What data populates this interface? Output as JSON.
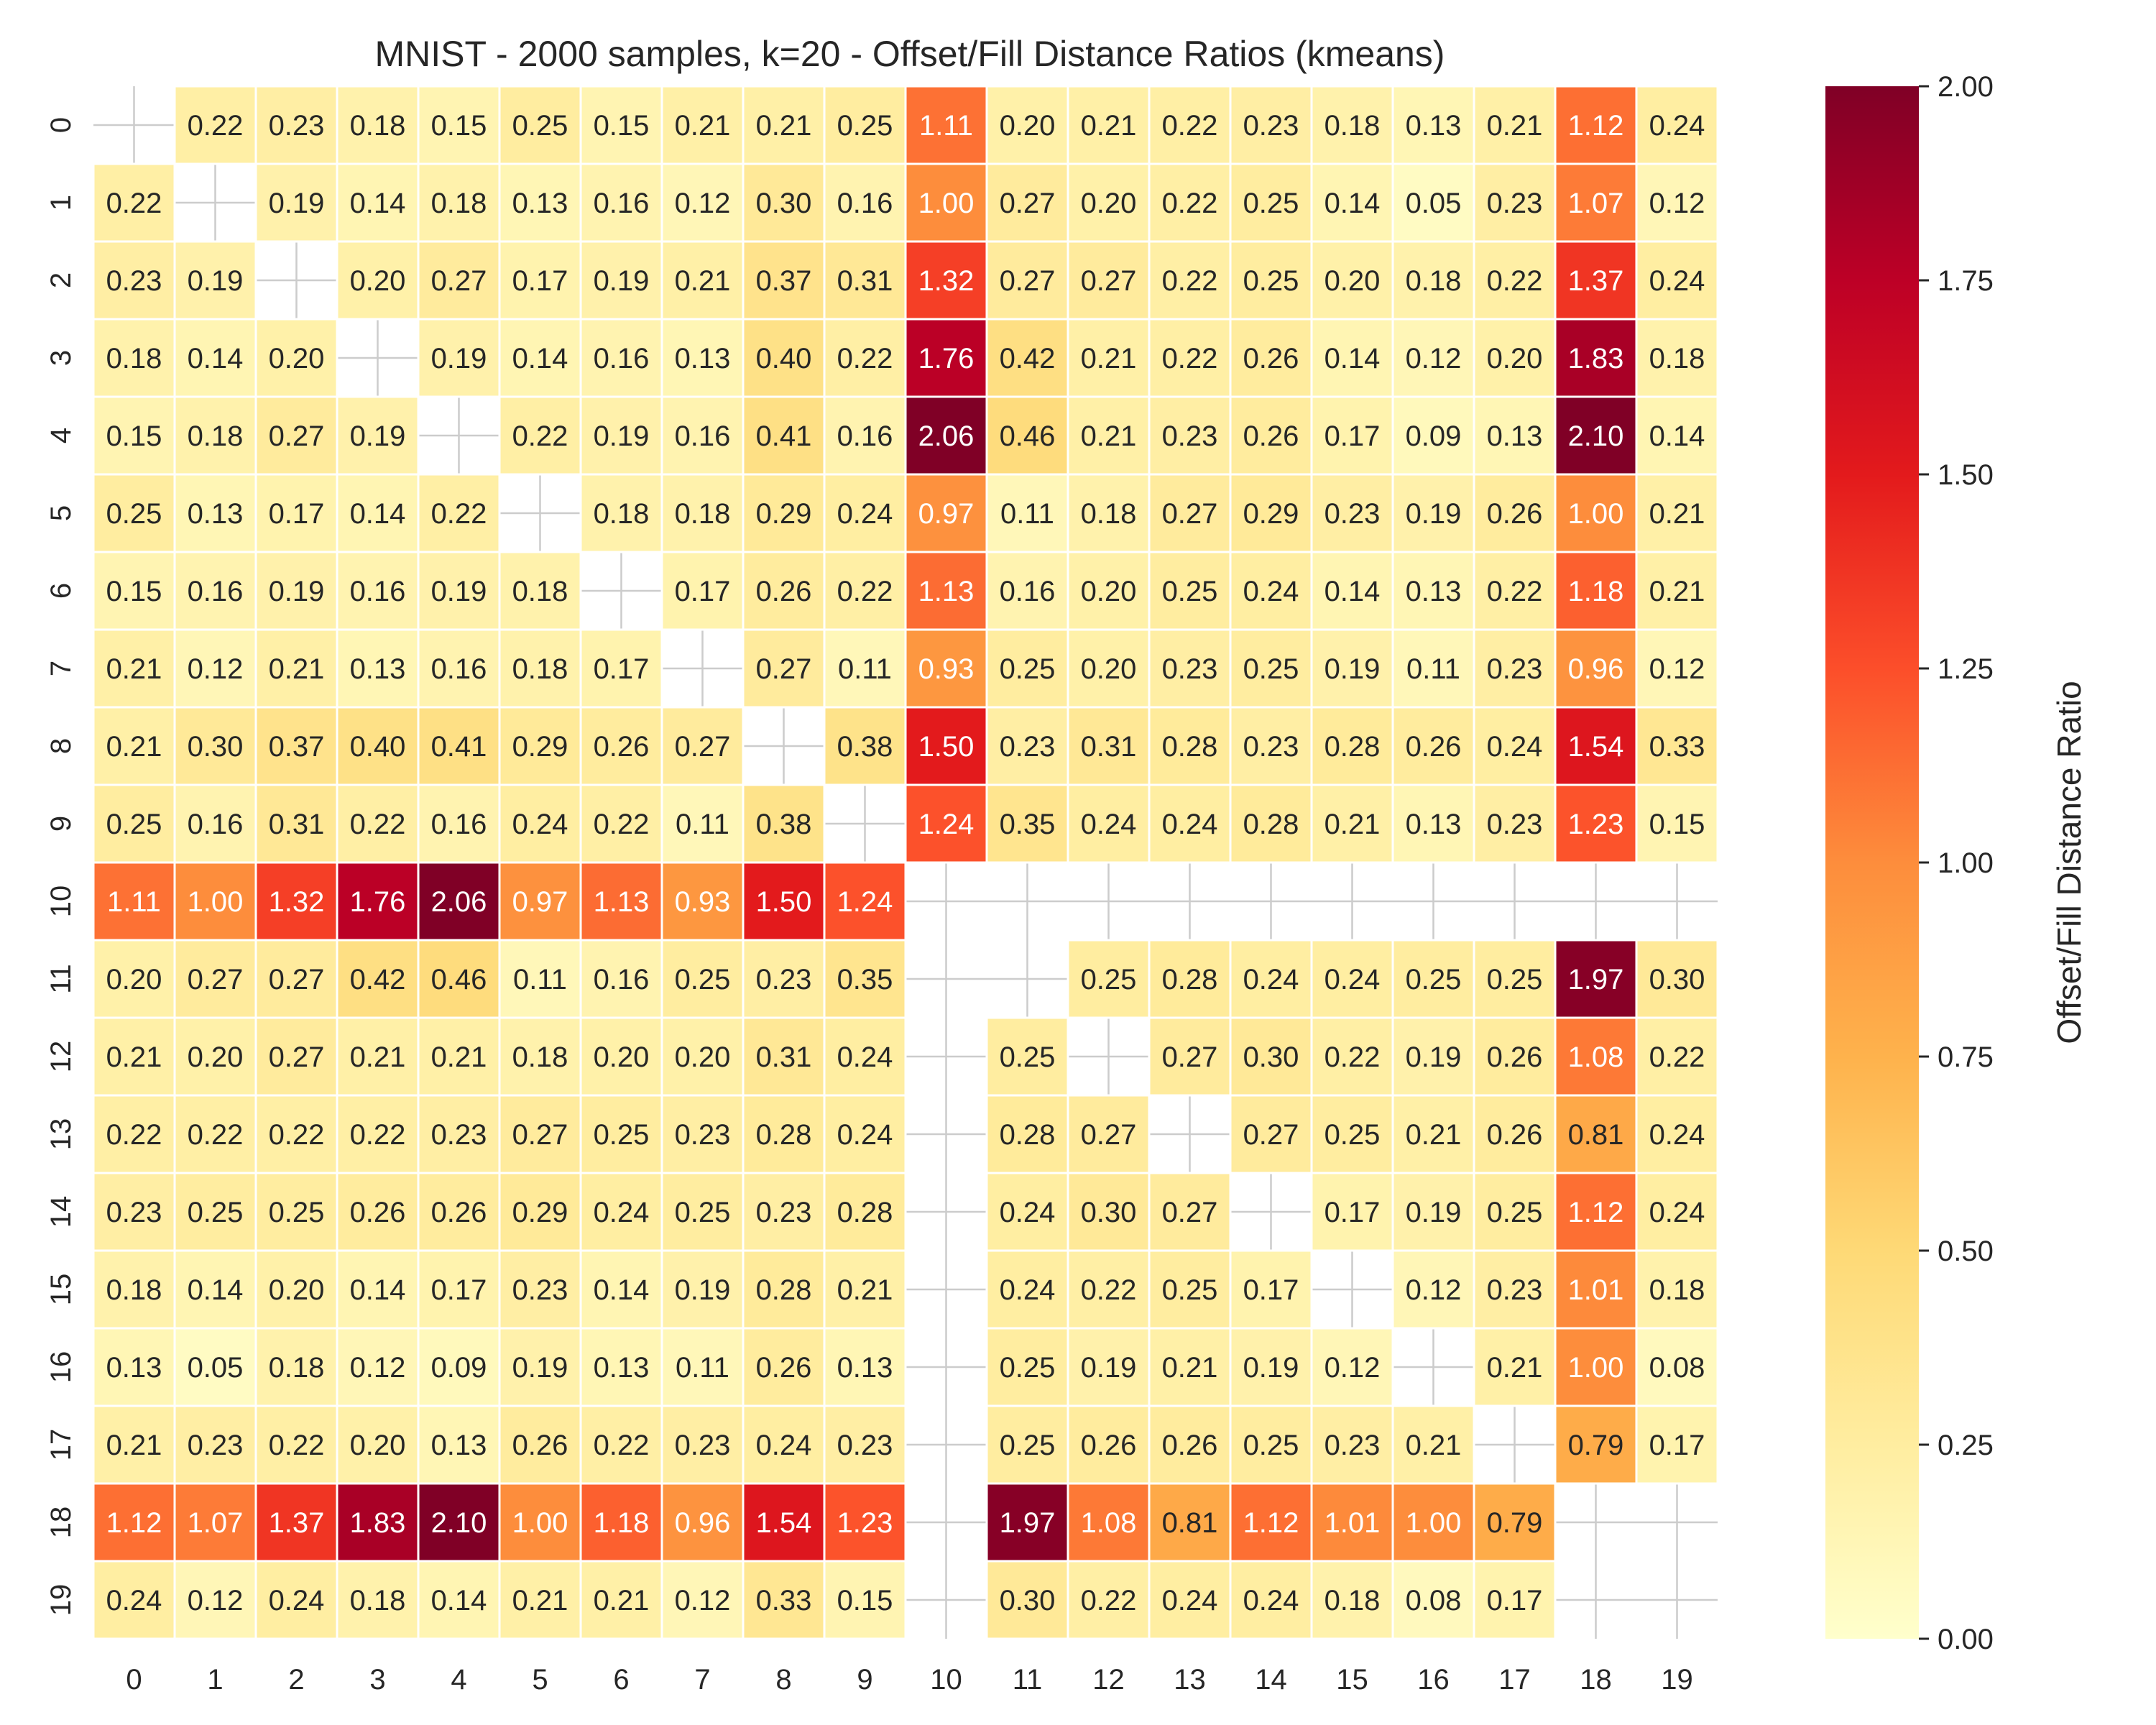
{
  "chart_data": {
    "type": "heatmap",
    "title": "MNIST - 2000 samples, k=20 - Offset/Fill Distance Ratios (kmeans)",
    "x_categories": [
      "0",
      "1",
      "2",
      "3",
      "4",
      "5",
      "6",
      "7",
      "8",
      "9",
      "10",
      "11",
      "12",
      "13",
      "14",
      "15",
      "16",
      "17",
      "18",
      "19"
    ],
    "y_categories": [
      "0",
      "1",
      "2",
      "3",
      "4",
      "5",
      "6",
      "7",
      "8",
      "9",
      "10",
      "11",
      "12",
      "13",
      "14",
      "15",
      "16",
      "17",
      "18",
      "19"
    ],
    "values": [
      [
        null,
        0.22,
        0.23,
        0.18,
        0.15,
        0.25,
        0.15,
        0.21,
        0.21,
        0.25,
        1.11,
        0.2,
        0.21,
        0.22,
        0.23,
        0.18,
        0.13,
        0.21,
        1.12,
        0.24
      ],
      [
        0.22,
        null,
        0.19,
        0.14,
        0.18,
        0.13,
        0.16,
        0.12,
        0.3,
        0.16,
        1.0,
        0.27,
        0.2,
        0.22,
        0.25,
        0.14,
        0.05,
        0.23,
        1.07,
        0.12
      ],
      [
        0.23,
        0.19,
        null,
        0.2,
        0.27,
        0.17,
        0.19,
        0.21,
        0.37,
        0.31,
        1.32,
        0.27,
        0.27,
        0.22,
        0.25,
        0.2,
        0.18,
        0.22,
        1.37,
        0.24
      ],
      [
        0.18,
        0.14,
        0.2,
        null,
        0.19,
        0.14,
        0.16,
        0.13,
        0.4,
        0.22,
        1.76,
        0.42,
        0.21,
        0.22,
        0.26,
        0.14,
        0.12,
        0.2,
        1.83,
        0.18
      ],
      [
        0.15,
        0.18,
        0.27,
        0.19,
        null,
        0.22,
        0.19,
        0.16,
        0.41,
        0.16,
        2.06,
        0.46,
        0.21,
        0.23,
        0.26,
        0.17,
        0.09,
        0.13,
        2.1,
        0.14
      ],
      [
        0.25,
        0.13,
        0.17,
        0.14,
        0.22,
        null,
        0.18,
        0.18,
        0.29,
        0.24,
        0.97,
        0.11,
        0.18,
        0.27,
        0.29,
        0.23,
        0.19,
        0.26,
        1.0,
        0.21
      ],
      [
        0.15,
        0.16,
        0.19,
        0.16,
        0.19,
        0.18,
        null,
        0.17,
        0.26,
        0.22,
        1.13,
        0.16,
        0.2,
        0.25,
        0.24,
        0.14,
        0.13,
        0.22,
        1.18,
        0.21
      ],
      [
        0.21,
        0.12,
        0.21,
        0.13,
        0.16,
        0.18,
        0.17,
        null,
        0.27,
        0.11,
        0.93,
        0.25,
        0.2,
        0.23,
        0.25,
        0.19,
        0.11,
        0.23,
        0.96,
        0.12
      ],
      [
        0.21,
        0.3,
        0.37,
        0.4,
        0.41,
        0.29,
        0.26,
        0.27,
        null,
        0.38,
        1.5,
        0.23,
        0.31,
        0.28,
        0.23,
        0.28,
        0.26,
        0.24,
        1.54,
        0.33
      ],
      [
        0.25,
        0.16,
        0.31,
        0.22,
        0.16,
        0.24,
        0.22,
        0.11,
        0.38,
        null,
        1.24,
        0.35,
        0.24,
        0.24,
        0.28,
        0.21,
        0.13,
        0.23,
        1.23,
        0.15
      ],
      [
        1.11,
        1.0,
        1.32,
        1.76,
        2.06,
        0.97,
        1.13,
        0.93,
        1.5,
        1.24,
        null,
        null,
        null,
        null,
        null,
        null,
        null,
        null,
        null,
        null
      ],
      [
        0.2,
        0.27,
        0.27,
        0.42,
        0.46,
        0.11,
        0.16,
        0.25,
        0.23,
        0.35,
        null,
        null,
        0.25,
        0.28,
        0.24,
        0.24,
        0.25,
        0.25,
        1.97,
        0.3
      ],
      [
        0.21,
        0.2,
        0.27,
        0.21,
        0.21,
        0.18,
        0.2,
        0.2,
        0.31,
        0.24,
        null,
        0.25,
        null,
        0.27,
        0.3,
        0.22,
        0.19,
        0.26,
        1.08,
        0.22
      ],
      [
        0.22,
        0.22,
        0.22,
        0.22,
        0.23,
        0.27,
        0.25,
        0.23,
        0.28,
        0.24,
        null,
        0.28,
        0.27,
        null,
        0.27,
        0.25,
        0.21,
        0.26,
        0.81,
        0.24
      ],
      [
        0.23,
        0.25,
        0.25,
        0.26,
        0.26,
        0.29,
        0.24,
        0.25,
        0.23,
        0.28,
        null,
        0.24,
        0.3,
        0.27,
        null,
        0.17,
        0.19,
        0.25,
        1.12,
        0.24
      ],
      [
        0.18,
        0.14,
        0.2,
        0.14,
        0.17,
        0.23,
        0.14,
        0.19,
        0.28,
        0.21,
        null,
        0.24,
        0.22,
        0.25,
        0.17,
        null,
        0.12,
        0.23,
        1.01,
        0.18
      ],
      [
        0.13,
        0.05,
        0.18,
        0.12,
        0.09,
        0.19,
        0.13,
        0.11,
        0.26,
        0.13,
        null,
        0.25,
        0.19,
        0.21,
        0.19,
        0.12,
        null,
        0.21,
        1.0,
        0.08
      ],
      [
        0.21,
        0.23,
        0.22,
        0.2,
        0.13,
        0.26,
        0.22,
        0.23,
        0.24,
        0.23,
        null,
        0.25,
        0.26,
        0.26,
        0.25,
        0.23,
        0.21,
        null,
        0.79,
        0.17
      ],
      [
        1.12,
        1.07,
        1.37,
        1.83,
        2.1,
        1.0,
        1.18,
        0.96,
        1.54,
        1.23,
        null,
        1.97,
        1.08,
        0.81,
        1.12,
        1.01,
        1.0,
        0.79,
        null,
        null
      ],
      [
        0.24,
        0.12,
        0.24,
        0.18,
        0.14,
        0.21,
        0.21,
        0.12,
        0.33,
        0.15,
        null,
        0.3,
        0.22,
        0.24,
        0.24,
        0.18,
        0.08,
        0.17,
        null,
        null
      ]
    ],
    "vmin": 0,
    "vmax": 2,
    "colormap": "YlOrRd",
    "colorbar": {
      "label": "Offset/Fill Distance Ratio",
      "ticks": [
        0,
        0.25,
        0.5,
        0.75,
        1.0,
        1.25,
        1.5,
        1.75,
        2.0
      ],
      "tick_labels": [
        "0.00",
        "0.25",
        "0.50",
        "0.75",
        "1.00",
        "1.25",
        "1.50",
        "1.75",
        "2.00"
      ]
    },
    "annotation_format": "2 decimals",
    "grid": true,
    "colors": {
      "text_dark": "#262626",
      "text_light": "#ffffff",
      "grid_line": "#cccccc",
      "cell_border": "#ffffff"
    }
  }
}
